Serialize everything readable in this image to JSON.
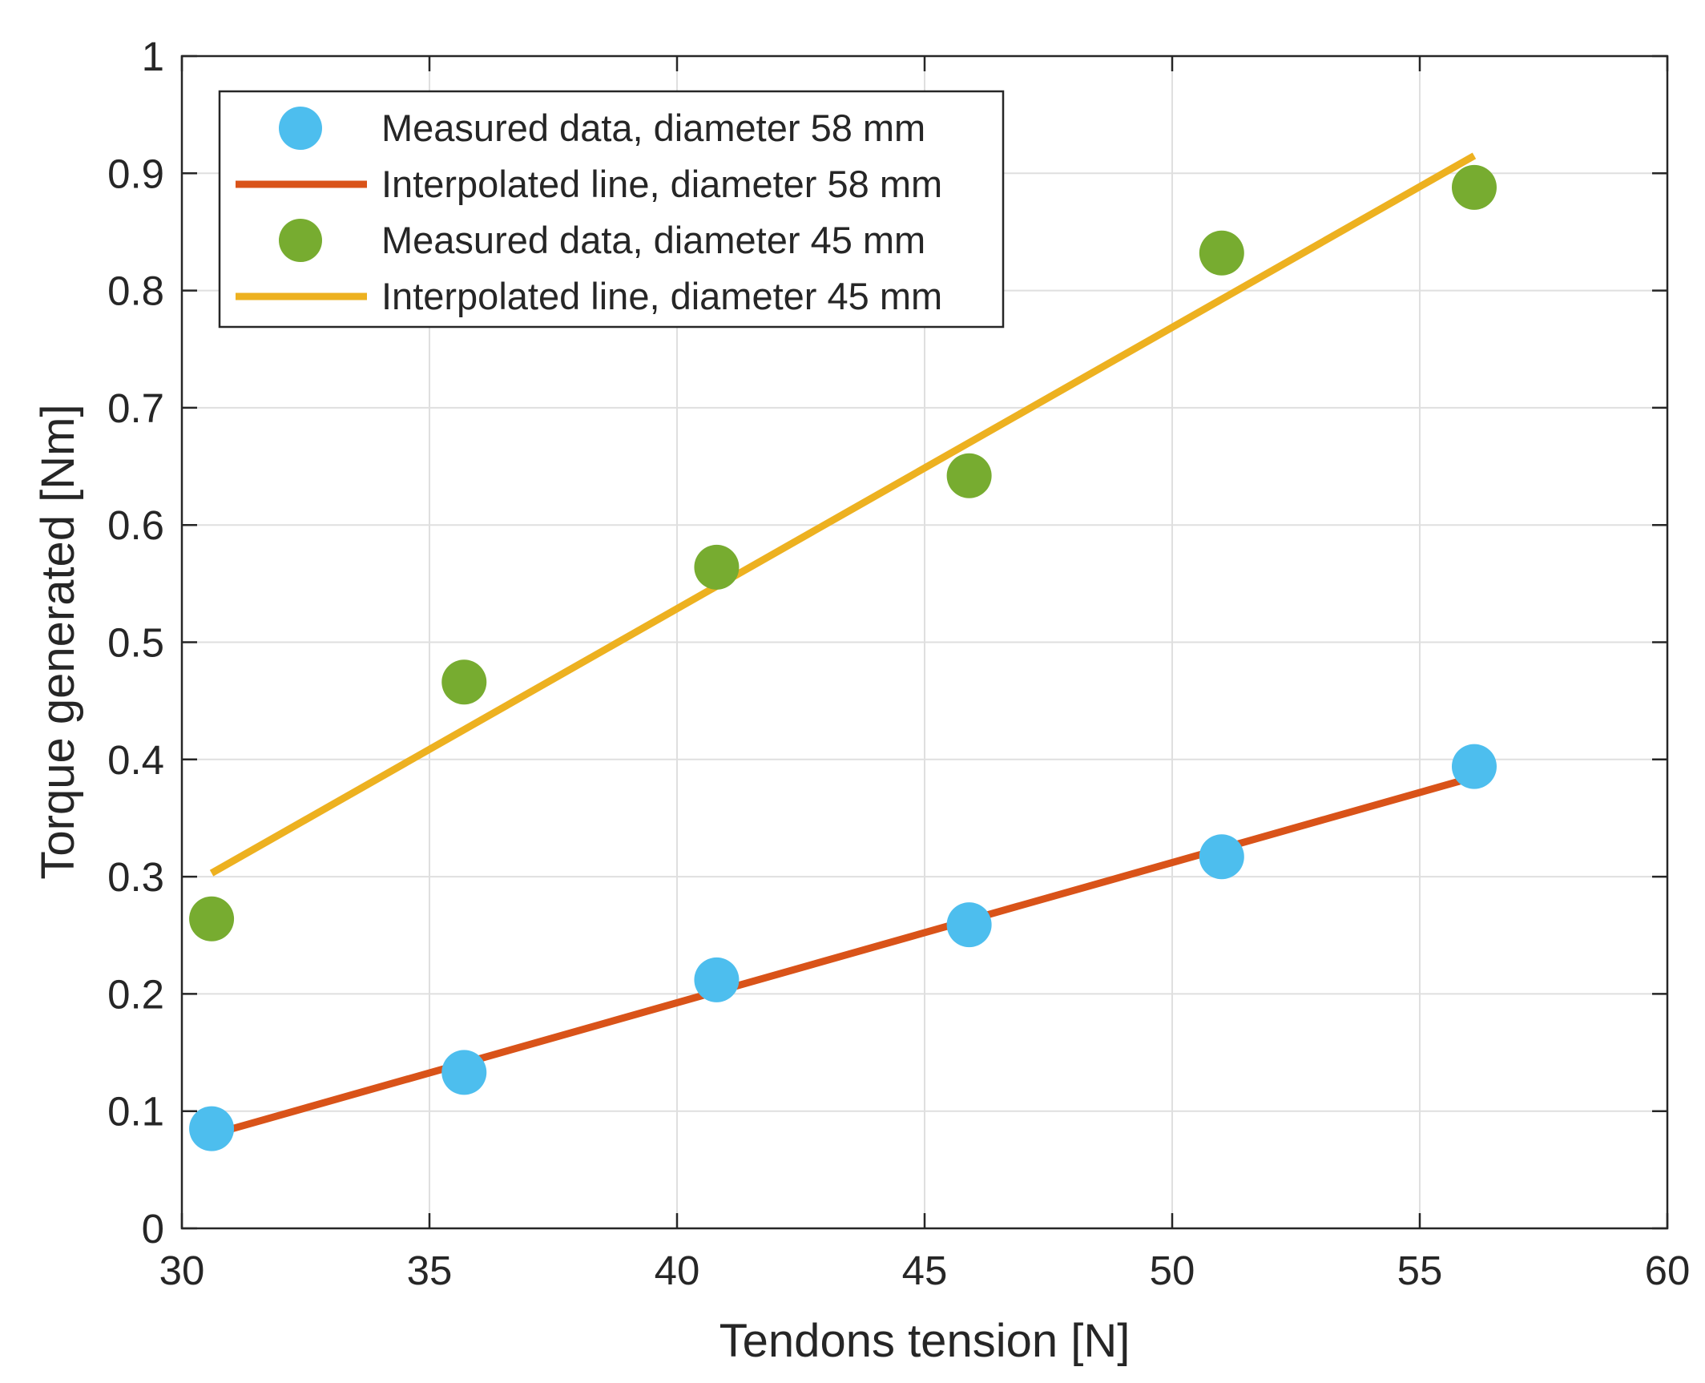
{
  "chart_data": {
    "type": "scatter",
    "title": "",
    "xlabel": "Tendons tension [N]",
    "ylabel": "Torque generated [Nm]",
    "xlim": [
      30,
      60
    ],
    "ylim": [
      0,
      1
    ],
    "grid": true,
    "xticks": [
      30,
      35,
      40,
      45,
      50,
      55,
      60
    ],
    "yticks": [
      0,
      0.1,
      0.2,
      0.3,
      0.4,
      0.5,
      0.6,
      0.7,
      0.8,
      0.9,
      1
    ],
    "x_tick_labels": [
      "30",
      "35",
      "40",
      "45",
      "50",
      "55",
      "60"
    ],
    "y_tick_labels": [
      "0",
      "0.1",
      "0.2",
      "0.3",
      "0.4",
      "0.5",
      "0.6",
      "0.7",
      "0.8",
      "0.9",
      "1"
    ],
    "legend_position": "top-left",
    "series": [
      {
        "name": "Measured data, diameter 58 mm",
        "kind": "markers",
        "color": "#4DBEEE",
        "x": [
          30.6,
          35.7,
          40.8,
          45.9,
          51.0,
          56.1
        ],
        "y": [
          0.085,
          0.133,
          0.212,
          0.259,
          0.317,
          0.394
        ]
      },
      {
        "name": "Interpolated line, diameter 58 mm",
        "kind": "line",
        "color": "#D95319",
        "x": [
          30.6,
          56.1
        ],
        "y": [
          0.08,
          0.385
        ]
      },
      {
        "name": "Measured data, diameter 45 mm",
        "kind": "markers",
        "color": "#77AC30",
        "x": [
          30.6,
          35.7,
          40.8,
          45.9,
          51.0,
          56.1
        ],
        "y": [
          0.264,
          0.466,
          0.564,
          0.642,
          0.832,
          0.888
        ]
      },
      {
        "name": "Interpolated line, diameter 45 mm",
        "kind": "line",
        "color": "#EDB120",
        "x": [
          30.6,
          56.1
        ],
        "y": [
          0.303,
          0.915
        ]
      }
    ]
  }
}
